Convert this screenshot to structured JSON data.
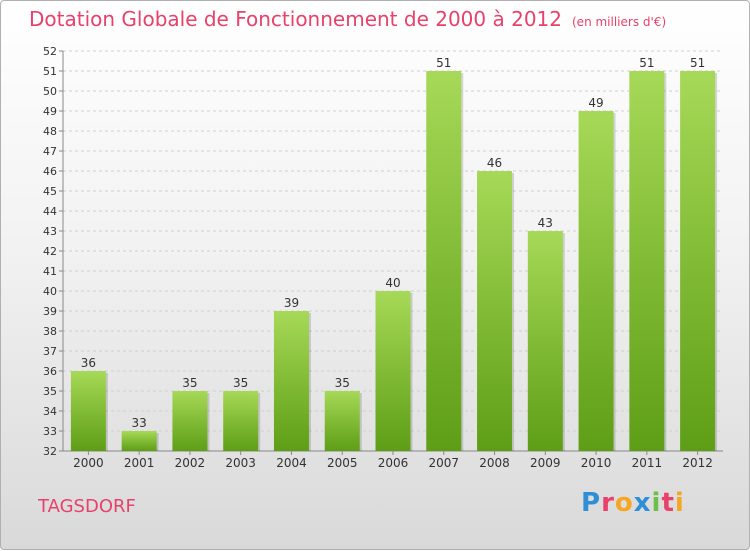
{
  "header": {
    "title": "Dotation Globale de Fonctionnement de 2000 à 2012",
    "unit": "(en milliers d'€)"
  },
  "footer": {
    "commune": "TAGSDORF",
    "logo_letters": [
      "P",
      "r",
      "o",
      "x",
      "i",
      "t",
      "i"
    ],
    "logo_colors": [
      "#2e8fd6",
      "#e8416a",
      "#f5a623",
      "#2e8fd6",
      "#6cc04a",
      "#e8416a",
      "#f5a623"
    ]
  },
  "chart_data": {
    "type": "bar",
    "categories": [
      "2000",
      "2001",
      "2002",
      "2003",
      "2004",
      "2005",
      "2006",
      "2007",
      "2008",
      "2009",
      "2010",
      "2011",
      "2012"
    ],
    "values": [
      36,
      33,
      35,
      35,
      39,
      35,
      40,
      51,
      46,
      43,
      49,
      51,
      51
    ],
    "ylim": [
      32,
      52
    ],
    "yticks": [
      32,
      33,
      34,
      35,
      36,
      37,
      38,
      39,
      40,
      41,
      42,
      43,
      44,
      45,
      46,
      47,
      48,
      49,
      50,
      51,
      52
    ],
    "grid": true,
    "bar_color": "#7dc42f"
  }
}
